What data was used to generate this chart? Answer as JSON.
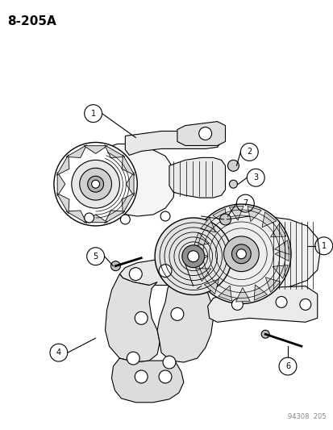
{
  "title": "8-205A",
  "background_color": "#ffffff",
  "text_color": "#000000",
  "watermark": "94308  205",
  "lw": 0.8,
  "lw2": 1.0,
  "label_r": 0.022,
  "label_fontsize": 7
}
